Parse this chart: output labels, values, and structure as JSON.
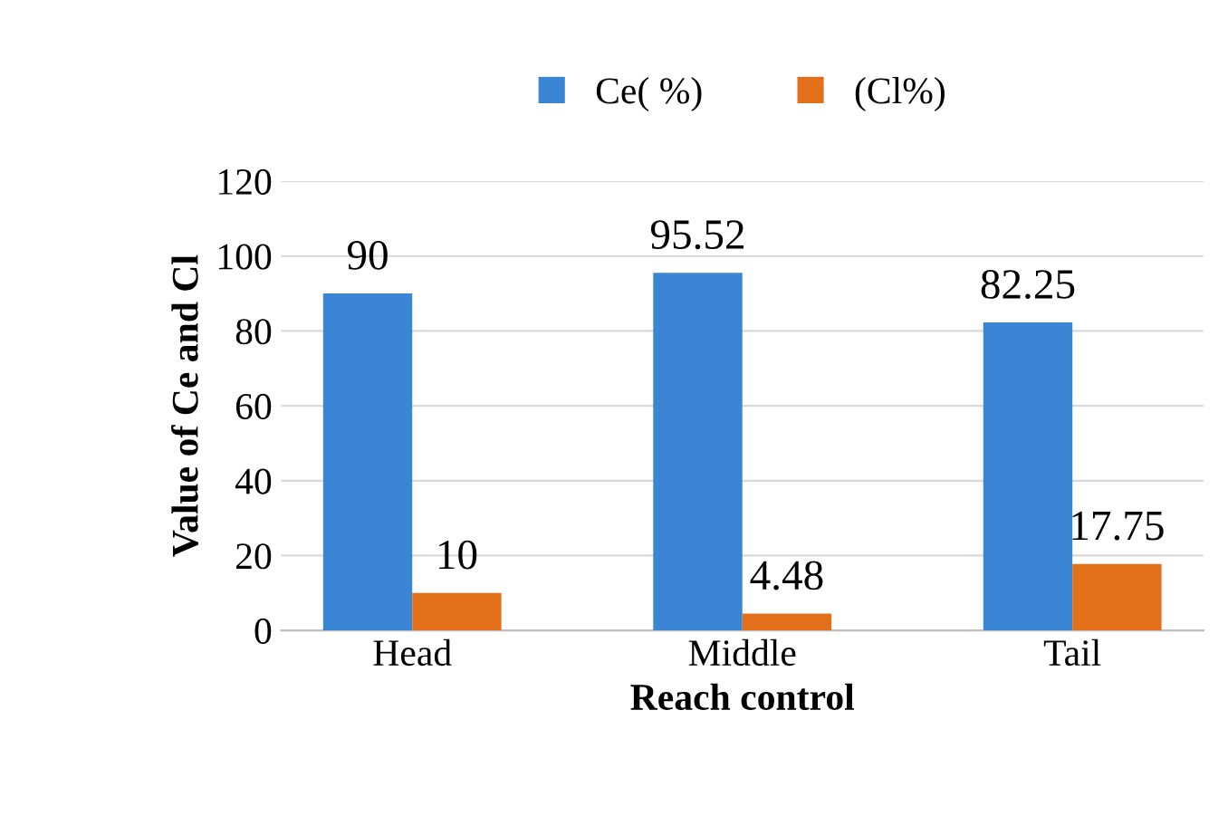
{
  "chart_data": {
    "type": "bar",
    "xlabel": "Reach control",
    "ylabel": "Value of Ce and Cl",
    "categories": [
      "Head",
      "Middle",
      "Tail"
    ],
    "series": [
      {
        "name": "Ce( %)",
        "color": "#3a86d4",
        "values": [
          90,
          95.52,
          82.25
        ]
      },
      {
        "name": "(Cl%)",
        "color": "#e2701a",
        "values": [
          10,
          4.48,
          17.75
        ]
      }
    ],
    "ylim": [
      0,
      120
    ],
    "yticks": [
      0,
      20,
      40,
      60,
      80,
      100,
      120
    ],
    "grid": "y",
    "legend": "top",
    "data_labels": true
  }
}
